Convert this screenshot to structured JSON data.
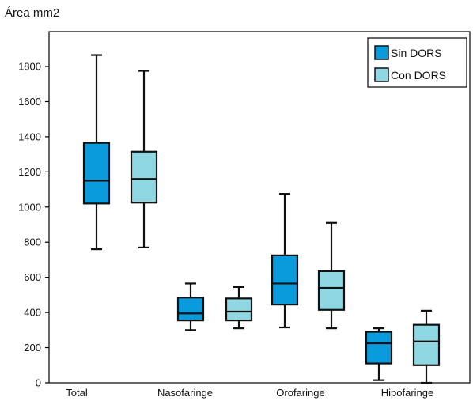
{
  "chart_data": {
    "type": "box",
    "ylabel": "Área mm2",
    "ylim": [
      0,
      1900
    ],
    "yticks": [
      0,
      200,
      400,
      600,
      800,
      1000,
      1200,
      1400,
      1600,
      1800
    ],
    "categories": [
      "Total",
      "Nasofaringe",
      "Orofaringe",
      "Hipofaringe"
    ],
    "legend_position": "top-right",
    "series": [
      {
        "name": "Sin DORS",
        "color": "#0a9bdc",
        "boxes": [
          {
            "min": 760,
            "q1": 1020,
            "median": 1150,
            "q3": 1365,
            "max": 1865
          },
          {
            "min": 300,
            "q1": 355,
            "median": 395,
            "q3": 485,
            "max": 565
          },
          {
            "min": 315,
            "q1": 445,
            "median": 565,
            "q3": 725,
            "max": 1075
          },
          {
            "min": 15,
            "q1": 110,
            "median": 225,
            "q3": 290,
            "max": 310
          }
        ]
      },
      {
        "name": "Con DORS",
        "color": "#8fd8e3",
        "boxes": [
          {
            "min": 770,
            "q1": 1025,
            "median": 1160,
            "q3": 1315,
            "max": 1775
          },
          {
            "min": 310,
            "q1": 355,
            "median": 405,
            "q3": 480,
            "max": 545
          },
          {
            "min": 310,
            "q1": 415,
            "median": 540,
            "q3": 635,
            "max": 910
          },
          {
            "min": 0,
            "q1": 100,
            "median": 235,
            "q3": 330,
            "max": 410
          }
        ]
      }
    ]
  }
}
